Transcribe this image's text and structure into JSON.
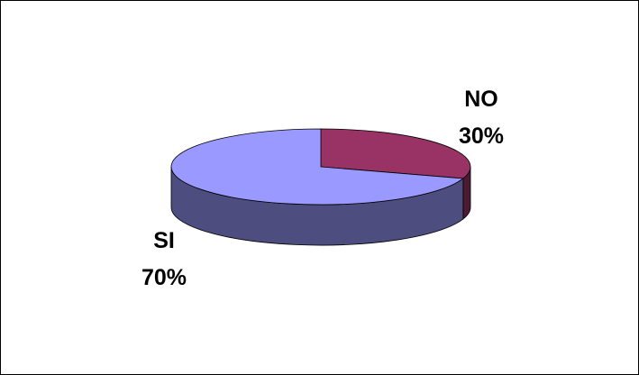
{
  "chart_data": {
    "type": "pie",
    "three_d": true,
    "legend": "none",
    "slices": [
      {
        "label": "SI",
        "value": 70,
        "value_label": "70%",
        "color": "#9999ff",
        "side_color": "#4d4d80"
      },
      {
        "label": "NO",
        "value": 30,
        "value_label": "30%",
        "color": "#993366",
        "side_color": "#4d1a33"
      }
    ]
  }
}
